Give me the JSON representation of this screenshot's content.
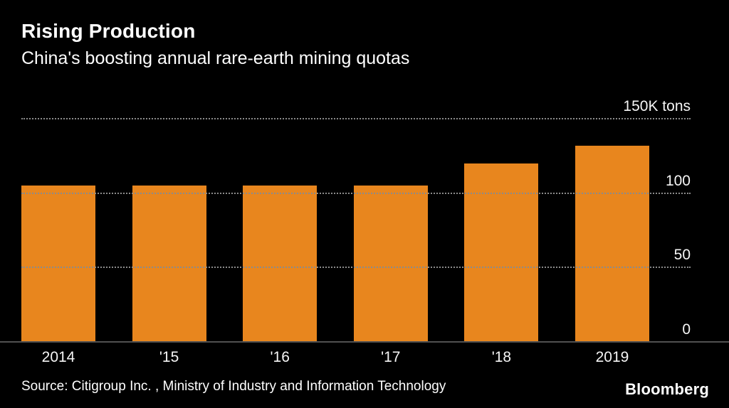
{
  "chart_data": {
    "type": "bar",
    "title": "Rising Production",
    "subtitle": "China's boosting annual rare-earth mining quotas",
    "categories": [
      "2014",
      "'15",
      "'16",
      "'17",
      "'18",
      "2019"
    ],
    "values": [
      105,
      105,
      105,
      105,
      120,
      132
    ],
    "ylim": [
      0,
      150
    ],
    "y_ticks": [
      {
        "value": 0,
        "label": "0"
      },
      {
        "value": 50,
        "label": "50"
      },
      {
        "value": 100,
        "label": "100"
      },
      {
        "value": 150,
        "label": "150K tons"
      }
    ],
    "xlabel": "",
    "ylabel": "",
    "legend": "none",
    "grid": "horizontal-dotted",
    "source": "Source: Citigroup Inc. , Ministry of Industry and Information Technology"
  },
  "footer": {
    "brand": "Bloomberg"
  },
  "colors": {
    "background": "#000000",
    "bar": "#E8861E",
    "text": "#FFFFFF",
    "gridline": "#8B8B8B",
    "baseline": "#515151"
  }
}
